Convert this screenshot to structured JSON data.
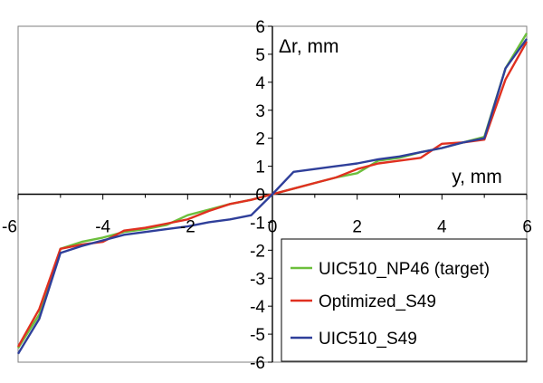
{
  "chart_data": {
    "type": "line",
    "xlabel": "y, mm",
    "ylabel": "Δr, mm",
    "xlim": [
      -6,
      6
    ],
    "ylim": [
      -6,
      6
    ],
    "x_ticks": [
      -6,
      -4,
      -2,
      0,
      2,
      4,
      6
    ],
    "y_ticks": [
      -6,
      -5,
      -4,
      -3,
      -2,
      -1,
      0,
      1,
      2,
      3,
      4,
      5,
      6
    ],
    "grid": false,
    "legend_position": "bottom-right",
    "series": [
      {
        "name": "UIC510_NP46 (target)",
        "color": "#6cbf3c",
        "points": [
          [
            -6,
            -5.5
          ],
          [
            -5.5,
            -4.3
          ],
          [
            -5,
            -1.95
          ],
          [
            -4.5,
            -1.7
          ],
          [
            -4,
            -1.55
          ],
          [
            -3.5,
            -1.35
          ],
          [
            -3,
            -1.25
          ],
          [
            -2.5,
            -1.1
          ],
          [
            -2,
            -0.75
          ],
          [
            -1.5,
            -0.55
          ],
          [
            -1,
            -0.35
          ],
          [
            -0.5,
            -0.2
          ],
          [
            0,
            0
          ],
          [
            0.5,
            0.2
          ],
          [
            1,
            0.4
          ],
          [
            1.5,
            0.6
          ],
          [
            2,
            0.75
          ],
          [
            2.5,
            1.2
          ],
          [
            3,
            1.3
          ],
          [
            3.5,
            1.5
          ],
          [
            4,
            1.65
          ],
          [
            4.5,
            1.85
          ],
          [
            5,
            2.05
          ],
          [
            5.5,
            4.5
          ],
          [
            6,
            5.75
          ]
        ]
      },
      {
        "name": "Optimized_S49",
        "color": "#e03020",
        "points": [
          [
            -6,
            -5.45
          ],
          [
            -5.5,
            -4.1
          ],
          [
            -5,
            -1.95
          ],
          [
            -4.5,
            -1.8
          ],
          [
            -4,
            -1.7
          ],
          [
            -3.5,
            -1.3
          ],
          [
            -3,
            -1.2
          ],
          [
            -2.5,
            -1.05
          ],
          [
            -2,
            -0.9
          ],
          [
            -1.5,
            -0.6
          ],
          [
            -1,
            -0.35
          ],
          [
            -0.5,
            -0.2
          ],
          [
            0,
            0
          ],
          [
            0.5,
            0.2
          ],
          [
            1,
            0.4
          ],
          [
            1.5,
            0.6
          ],
          [
            2,
            0.9
          ],
          [
            2.5,
            1.1
          ],
          [
            3,
            1.2
          ],
          [
            3.5,
            1.3
          ],
          [
            4,
            1.8
          ],
          [
            4.5,
            1.85
          ],
          [
            5,
            1.95
          ],
          [
            5.5,
            4.1
          ],
          [
            6,
            5.45
          ]
        ]
      },
      {
        "name": "UIC510_S49",
        "color": "#2f3f9a",
        "points": [
          [
            -6,
            -5.7
          ],
          [
            -5.5,
            -4.45
          ],
          [
            -5,
            -2.1
          ],
          [
            -4.5,
            -1.85
          ],
          [
            -4,
            -1.65
          ],
          [
            -3.5,
            -1.45
          ],
          [
            -3,
            -1.35
          ],
          [
            -2.5,
            -1.25
          ],
          [
            -2,
            -1.15
          ],
          [
            -1.5,
            -1.0
          ],
          [
            -1,
            -0.9
          ],
          [
            -0.5,
            -0.75
          ],
          [
            0,
            0
          ],
          [
            0.5,
            0.8
          ],
          [
            1,
            0.9
          ],
          [
            1.5,
            1.0
          ],
          [
            2,
            1.1
          ],
          [
            2.5,
            1.25
          ],
          [
            3,
            1.35
          ],
          [
            3.5,
            1.5
          ],
          [
            4,
            1.65
          ],
          [
            4.5,
            1.85
          ],
          [
            5,
            2.0
          ],
          [
            5.5,
            4.5
          ],
          [
            6,
            5.55
          ]
        ]
      }
    ]
  }
}
